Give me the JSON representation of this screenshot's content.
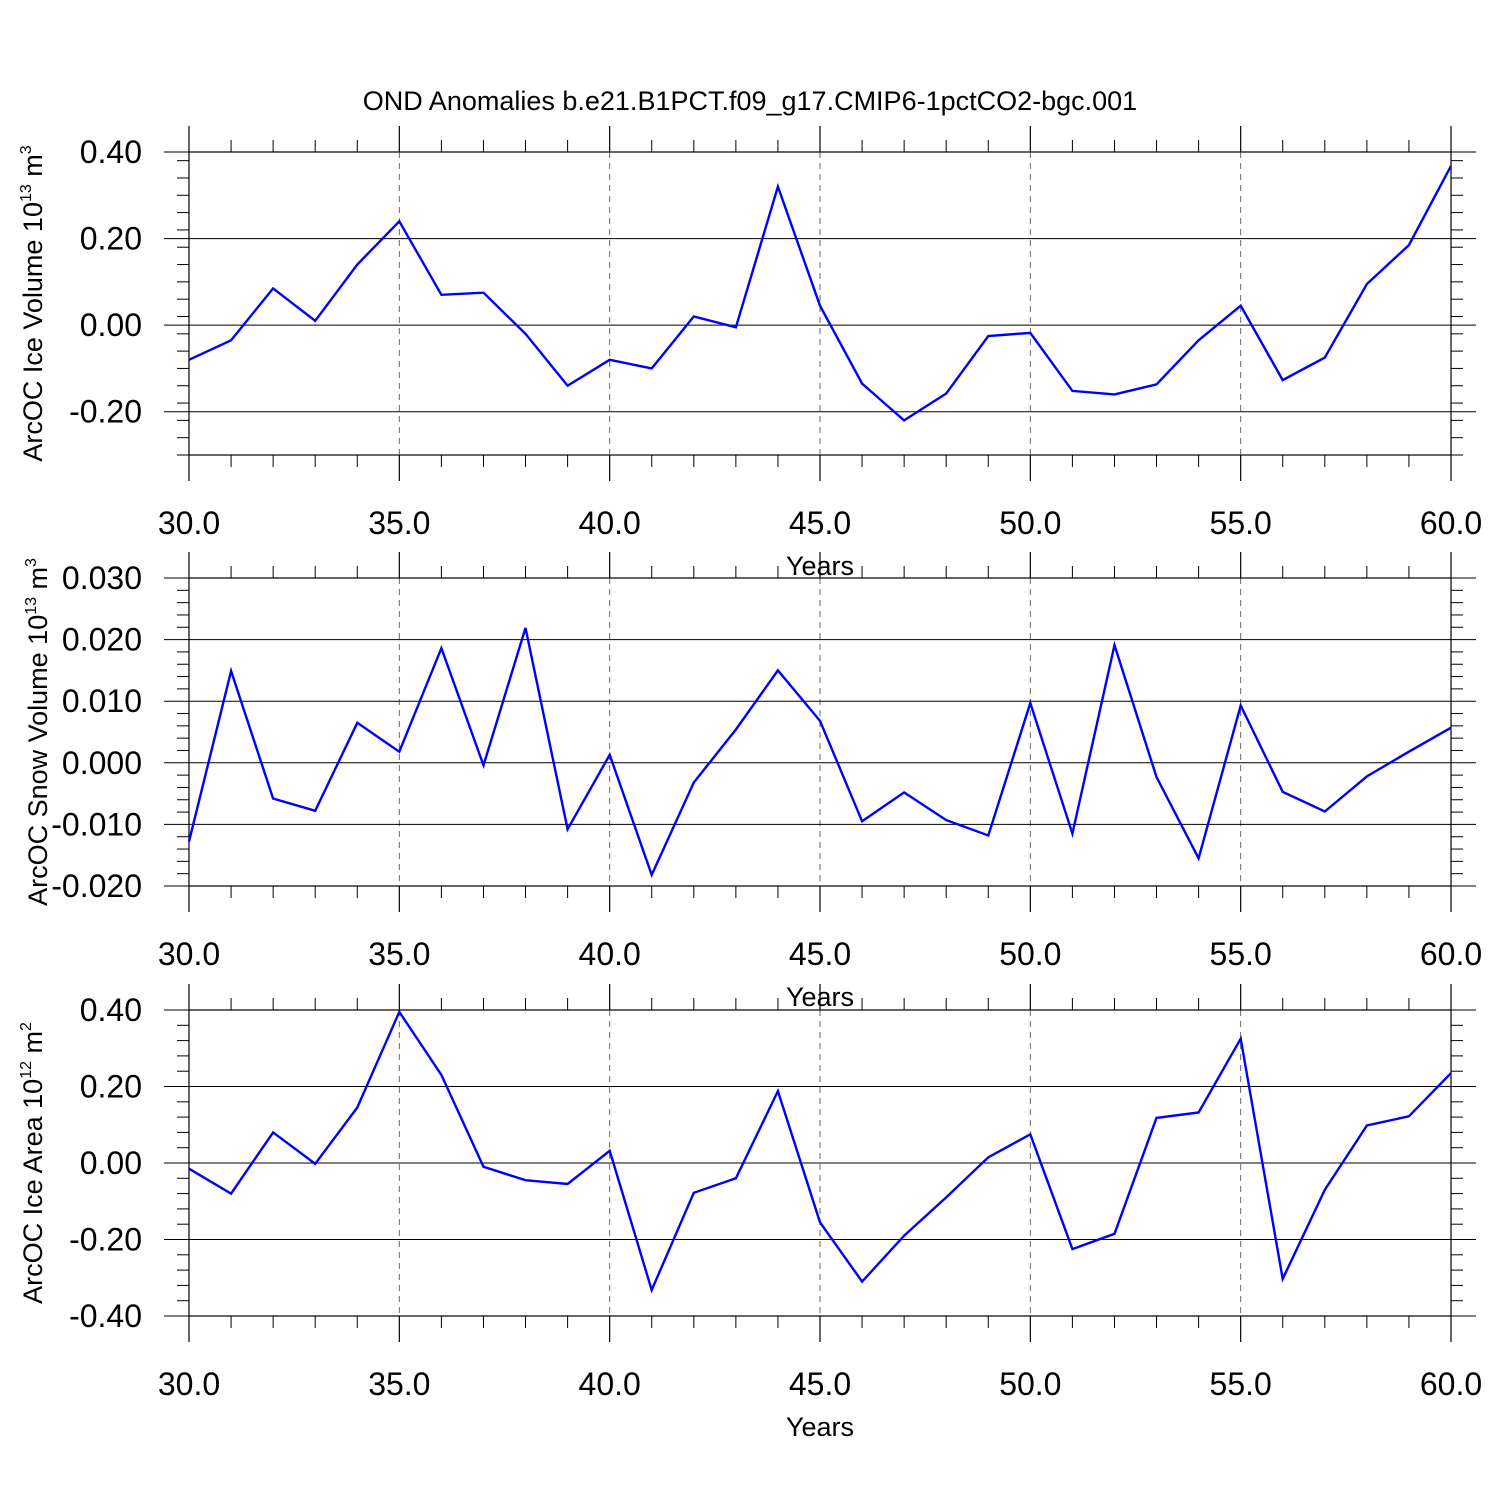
{
  "title": "OND Anomalies b.e21.B1PCT.f09_g17.CMIP6-1pctCO2-bgc.001",
  "line_color": "#0000ff",
  "chart_data": [
    {
      "type": "line",
      "ylabel": {
        "base": "ArcOC Ice Volume 10",
        "exp1": "13",
        "mid": " m",
        "exp2": "3"
      },
      "xlabel": "Years",
      "xlim": [
        30,
        60
      ],
      "ylim": [
        -0.3,
        0.4
      ],
      "xticks": [
        30,
        35,
        40,
        45,
        50,
        55,
        60
      ],
      "xtick_labels": [
        "30.0",
        "35.0",
        "40.0",
        "45.0",
        "50.0",
        "55.0",
        "60.0"
      ],
      "yticks": [
        -0.2,
        0.0,
        0.2,
        0.4
      ],
      "ytick_labels": [
        "-0.20",
        "0.00",
        "0.20",
        "0.40"
      ],
      "x": [
        30,
        31,
        32,
        33,
        34,
        35,
        36,
        37,
        38,
        39,
        40,
        41,
        42,
        43,
        44,
        45,
        46,
        47,
        48,
        49,
        50,
        51,
        52,
        53,
        54,
        55,
        56,
        57,
        58,
        59,
        60
      ],
      "y": [
        -0.08,
        -0.035,
        0.085,
        0.01,
        0.14,
        0.24,
        0.07,
        0.075,
        -0.02,
        -0.14,
        -0.08,
        -0.1,
        0.02,
        -0.005,
        0.32,
        0.045,
        -0.135,
        -0.22,
        -0.158,
        -0.025,
        -0.018,
        -0.152,
        -0.16,
        -0.137,
        -0.035,
        0.045,
        -0.127,
        -0.075,
        0.095,
        0.185,
        0.368
      ]
    },
    {
      "type": "line",
      "ylabel": {
        "base": "ArcOC Snow Volume 10",
        "exp1": "13",
        "mid": " m",
        "exp2": "3"
      },
      "xlabel": "Years",
      "xlim": [
        30,
        60
      ],
      "ylim": [
        -0.02,
        0.03
      ],
      "xticks": [
        30,
        35,
        40,
        45,
        50,
        55,
        60
      ],
      "xtick_labels": [
        "30.0",
        "35.0",
        "40.0",
        "45.0",
        "50.0",
        "55.0",
        "60.0"
      ],
      "yticks": [
        -0.02,
        -0.01,
        0.0,
        0.01,
        0.02,
        0.03
      ],
      "ytick_labels": [
        "-0.020",
        "-0.010",
        "0.000",
        "0.010",
        "0.020",
        "0.030"
      ],
      "x": [
        30,
        31,
        32,
        33,
        34,
        35,
        36,
        37,
        38,
        39,
        40,
        41,
        42,
        43,
        44,
        45,
        46,
        47,
        48,
        49,
        50,
        51,
        52,
        53,
        54,
        55,
        56,
        57,
        58,
        59,
        60
      ],
      "y": [
        -0.0128,
        0.0149,
        -0.0058,
        -0.0078,
        0.0065,
        0.0018,
        0.0186,
        -0.0004,
        0.0219,
        -0.0108,
        0.0013,
        -0.0182,
        -0.0032,
        0.0054,
        0.015,
        0.0068,
        -0.0095,
        -0.0048,
        -0.0093,
        -0.0118,
        0.0097,
        -0.0115,
        0.0191,
        -0.0023,
        -0.0155,
        0.0093,
        -0.0047,
        -0.0079,
        -0.0022,
        0.0018,
        0.0057
      ]
    },
    {
      "type": "line",
      "ylabel": {
        "base": "ArcOC Ice Area 10",
        "exp1": "12",
        "mid": " m",
        "exp2": "2"
      },
      "xlabel": "Years",
      "xlim": [
        30,
        60
      ],
      "ylim": [
        -0.4,
        0.4
      ],
      "xticks": [
        30,
        35,
        40,
        45,
        50,
        55,
        60
      ],
      "xtick_labels": [
        "30.0",
        "35.0",
        "40.0",
        "45.0",
        "50.0",
        "55.0",
        "60.0"
      ],
      "yticks": [
        -0.4,
        -0.2,
        0.0,
        0.2,
        0.4
      ],
      "ytick_labels": [
        "-0.40",
        "-0.20",
        "0.00",
        "0.20",
        "0.40"
      ],
      "x": [
        30,
        31,
        32,
        33,
        34,
        35,
        36,
        37,
        38,
        39,
        40,
        41,
        42,
        43,
        44,
        45,
        46,
        47,
        48,
        49,
        50,
        51,
        52,
        53,
        54,
        55,
        56,
        57,
        58,
        59,
        60
      ],
      "y": [
        -0.015,
        -0.08,
        0.08,
        -0.002,
        0.145,
        0.395,
        0.23,
        -0.01,
        -0.045,
        -0.055,
        0.032,
        -0.332,
        -0.078,
        -0.04,
        0.188,
        -0.155,
        -0.31,
        -0.19,
        -0.09,
        0.015,
        0.075,
        -0.225,
        -0.185,
        0.118,
        0.132,
        0.325,
        -0.303,
        -0.07,
        0.098,
        0.122,
        0.235
      ]
    }
  ]
}
